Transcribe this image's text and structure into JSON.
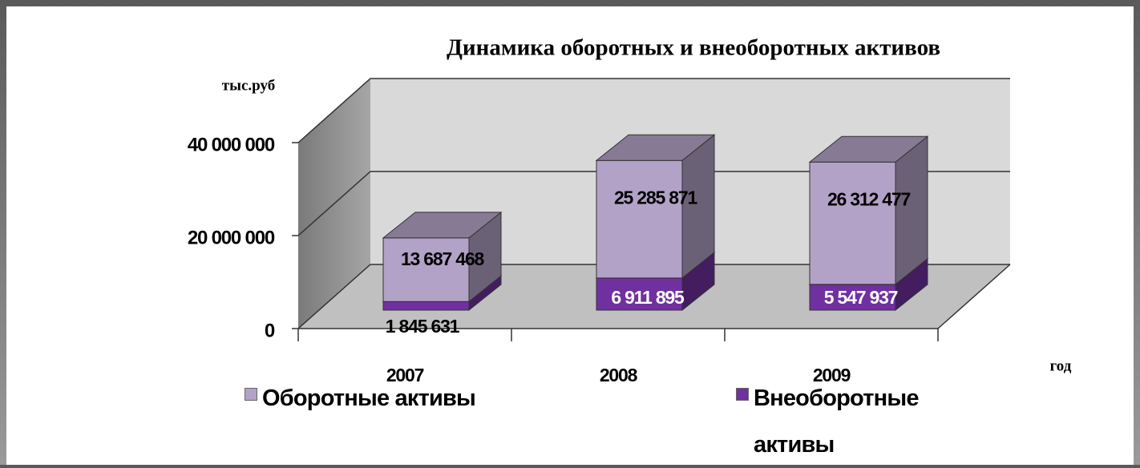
{
  "chart_data": {
    "type": "bar3d_stacked",
    "title": "Динамика оборотных и внеоборотных активов",
    "y_axis_label": "тыс.руб",
    "x_axis_label": "год",
    "categories": [
      "2007",
      "2008",
      "2009"
    ],
    "series": [
      {
        "name": "Внеоборотные активы",
        "color": "#7030a0",
        "values": [
          1845631,
          6911895,
          5547937
        ],
        "value_labels": [
          "1 845 631",
          "6 911 895",
          "5 547 937"
        ]
      },
      {
        "name": "Оборотные активы",
        "color": "#b3a2c7",
        "values": [
          13687468,
          25285871,
          26312477
        ],
        "value_labels": [
          "13 687 468",
          "25 285 871",
          "26 312 477"
        ]
      }
    ],
    "ylim": [
      0,
      40000000
    ],
    "yticks": [
      0,
      {
        "value": 20000000,
        "label": "20 000 000"
      },
      {
        "value": 40000000,
        "label": "40 000 000"
      }
    ],
    "grid": true
  }
}
